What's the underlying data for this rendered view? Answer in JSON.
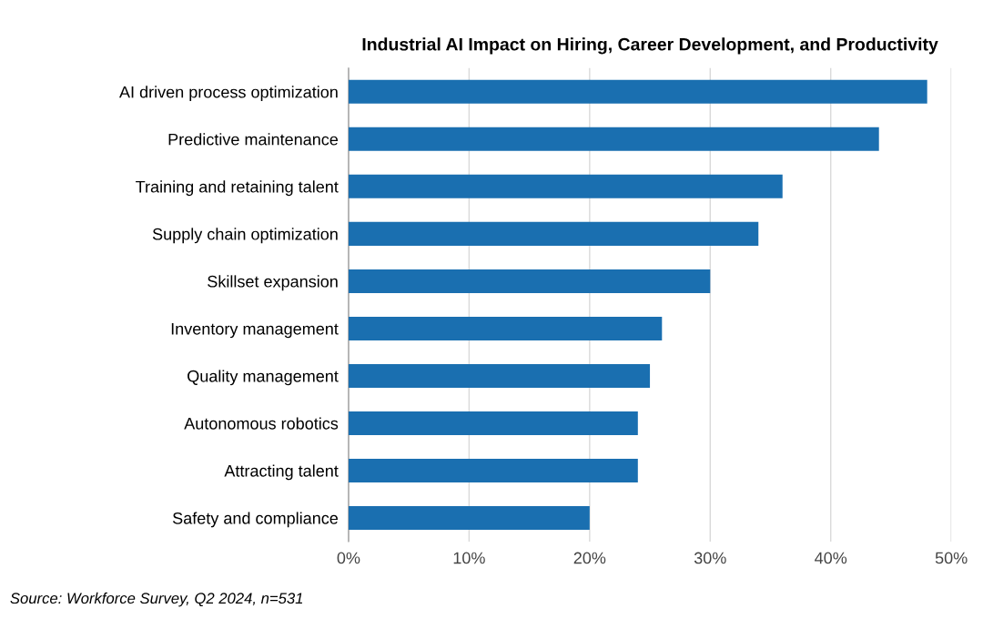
{
  "chart_data": {
    "type": "bar",
    "orientation": "horizontal",
    "title": "Industrial AI Impact on Hiring, Career Development, and Productivity",
    "categories": [
      "AI driven process optimization",
      "Predictive maintenance",
      "Training and retaining talent",
      "Supply chain optimization",
      "Skillset expansion",
      "Inventory management",
      "Quality management",
      "Autonomous robotics",
      "Attracting talent",
      "Safety and compliance"
    ],
    "values": [
      48,
      44,
      36,
      34,
      30,
      26,
      25,
      24,
      24,
      20
    ],
    "color": "#1a6fb0",
    "xlim": [
      0,
      50
    ],
    "xticks": [
      {
        "value": 0,
        "label": "0%"
      },
      {
        "value": 10,
        "label": "10%"
      },
      {
        "value": 20,
        "label": "20%"
      },
      {
        "value": 30,
        "label": "30%"
      },
      {
        "value": 40,
        "label": "40%"
      },
      {
        "value": 50,
        "label": "50%"
      }
    ],
    "grid": "x",
    "annotations": [
      "Source: Workforce Survey, Q2 2024, n=531"
    ]
  }
}
